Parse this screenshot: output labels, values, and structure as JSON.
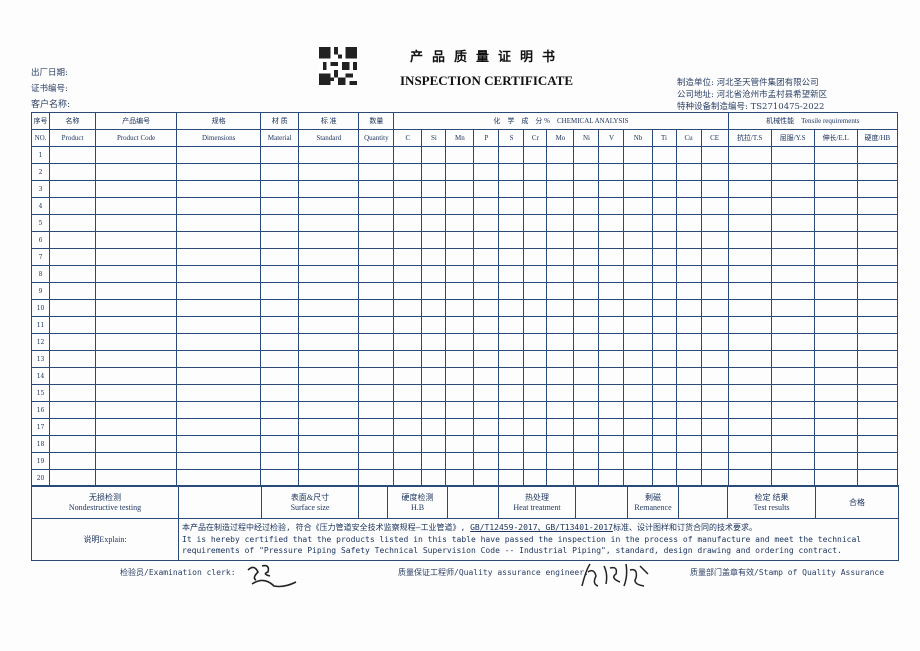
{
  "header": {
    "title_cn": "产品质量证明书",
    "title_en": "INSPECTION CERTIFICATE",
    "left_fields": [
      "出厂日期:",
      "证书编号:",
      "客户名称:"
    ],
    "right_fields": [
      "制造单位: 河北圣天管件集团有限公司",
      "公司地址: 河北省沧州市孟村县希望新区",
      "特种设备制造编号: TS2710475-2022"
    ],
    "qr_icon": "qr-code-icon"
  },
  "table": {
    "columns": [
      {
        "cn": "序号",
        "en": "NO."
      },
      {
        "cn": "名称",
        "en": "Product"
      },
      {
        "cn": "产品编号",
        "en": "Product Code"
      },
      {
        "cn": "规格",
        "en": "Dimensions"
      },
      {
        "cn": "材 质",
        "en": "Material"
      },
      {
        "cn": "标 准",
        "en": "Standard"
      },
      {
        "cn": "数量",
        "en": "Quantity"
      }
    ],
    "chemical_header": "化　学　成　分 %　CHEMICAL ANALYSIS",
    "chemical_elements": [
      "C",
      "Si",
      "Mn",
      "P",
      "S",
      "Cr",
      "Mo",
      "Ni",
      "V",
      "Nb",
      "Ti",
      "Cu",
      "CE"
    ],
    "tensile_header": "机械性能　Tensile requirements",
    "tensile_columns": [
      "抗拉/T.S",
      "屈服/Y.S",
      "伸长/E.L",
      "硬度/HB"
    ],
    "row_numbers": [
      "1",
      "2",
      "3",
      "4",
      "5",
      "6",
      "7",
      "8",
      "9",
      "10",
      "11",
      "12",
      "13",
      "14",
      "15",
      "16",
      "17",
      "18",
      "19",
      "20"
    ]
  },
  "bottom": {
    "ndt_cn": "无损检测",
    "ndt_en": "Nondestructive testing",
    "surface_cn": "表面&尺寸",
    "surface_en": "Surface size",
    "hardness_cn": "硬度检测",
    "hardness_en": "H.B",
    "heat_cn": "热处理",
    "heat_en": "Heat treatment",
    "remanence_cn": "剩磁",
    "remanence_en": "Remanence",
    "result_cn": "检定 结果",
    "result_en": "Test results",
    "result_value": "合格",
    "explain_label": "说明Explain:",
    "explain_cn_1": "本产品在制造过程中经过检验, 符合《压力管道安全技术监察规程—工业管道》, ",
    "explain_cn_std": "GB/T12459-2017、GB/T13401-2017",
    "explain_cn_2": "标准、设计图样和订货合同的技术要求。",
    "explain_en_1": "It is hereby certified that the products listed in this table have passed the inspection in the process of manufacture and meet the technical",
    "explain_en_2": "requirements of \"Pressure Piping Safety Technical Supervision Code -- Industrial Piping\", standard, design drawing and ordering contract."
  },
  "signatures": {
    "clerk_label": "检验员/Examination clerk:",
    "qa_label": "质量保证工程师/Quality assurance engineer:",
    "stamp_label": "质量部门盖章有效/Stamp of Quality Assurance"
  },
  "colors": {
    "ink": "#1d3560",
    "lines": "#2a4a78"
  }
}
